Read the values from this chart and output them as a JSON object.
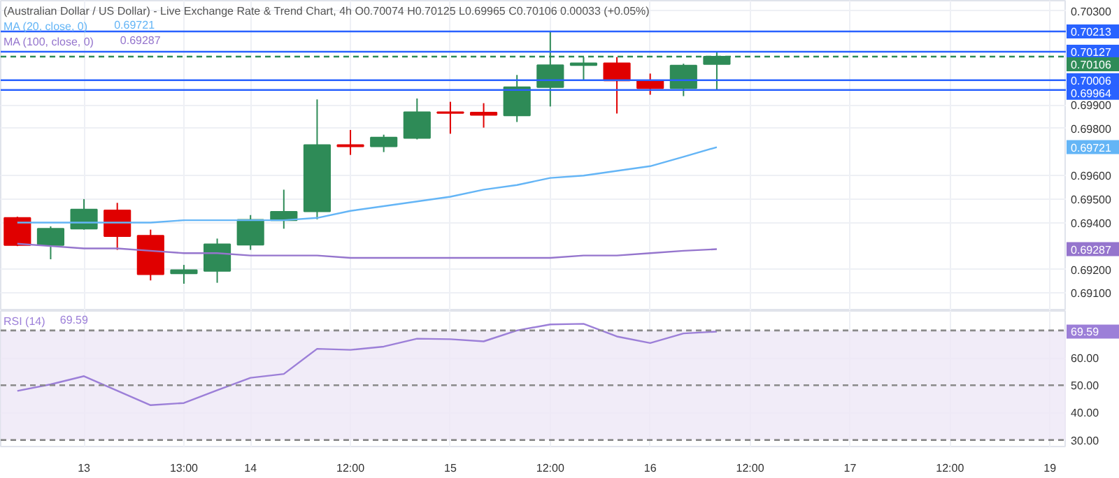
{
  "chart_data": [
    {
      "type": "candlestick",
      "title": "(Australian Dollar / US Dollar) - Live Exchange Rate & Trend Chart, 4h  O0.70074  H0.70125  L0.69965  C0.70106  0.00033 (+0.05%)",
      "categories": [
        null,
        null,
        null,
        null,
        null,
        null,
        null,
        null,
        null,
        null,
        null,
        null,
        null,
        null,
        null,
        null,
        null,
        null,
        null,
        null,
        null,
        null,
        null,
        null,
        null,
        null,
        null,
        null,
        null,
        null,
        null,
        null
      ],
      "ohlc": [
        [
          0.6942,
          0.69425,
          0.693,
          0.69304
        ],
        [
          0.69304,
          0.69384,
          0.69244,
          0.69374
        ],
        [
          0.69374,
          0.695,
          0.6937,
          0.69456
        ],
        [
          0.69452,
          0.69484,
          0.69284,
          0.69342
        ],
        [
          0.69344,
          0.6937,
          0.69154,
          0.6918
        ],
        [
          0.69184,
          0.6922,
          0.6914,
          0.69198
        ],
        [
          0.69194,
          0.69332,
          0.69144,
          0.69308
        ],
        [
          0.69306,
          0.69432,
          0.69284,
          0.69412
        ],
        [
          0.6941,
          0.6954,
          0.69374,
          0.69446
        ],
        [
          0.69448,
          0.69924,
          0.69414,
          0.6973
        ],
        [
          0.6973,
          0.69794,
          0.69688,
          0.69724
        ],
        [
          0.69724,
          0.69774,
          0.697,
          0.69762
        ],
        [
          0.6976,
          0.69928,
          0.69754,
          0.6987
        ],
        [
          0.6987,
          0.69914,
          0.69778,
          0.69866
        ],
        [
          0.69868,
          0.69908,
          0.69804,
          0.69858
        ],
        [
          0.69856,
          0.70028,
          0.69828,
          0.69976
        ],
        [
          0.69976,
          0.70213,
          0.69894,
          0.7007
        ],
        [
          0.7007,
          0.70104,
          0.70004,
          0.70078
        ],
        [
          0.70078,
          0.70104,
          0.69864,
          0.70004
        ],
        [
          0.70004,
          0.70034,
          0.69944,
          0.69972
        ],
        [
          0.69972,
          0.70076,
          0.69938,
          0.70068
        ],
        [
          0.70074,
          0.70125,
          0.69965,
          0.70106
        ],
        null,
        null,
        null,
        null,
        null,
        null,
        null,
        null,
        null,
        null
      ],
      "colors": [
        "#e00000",
        "#2e8b57",
        "#2e8b57",
        "#e00000",
        "#e00000",
        "#2e8b57",
        "#2e8b57",
        "#2e8b57",
        "#2e8b57",
        "#2e8b57",
        "#e00000",
        "#2e8b57",
        "#2e8b57",
        "#e00000",
        "#e00000",
        "#2e8b57",
        "#2e8b57",
        "#2e8b57",
        "#e00000",
        "#e00000",
        "#2e8b57",
        "#2e8b57",
        null,
        null,
        null,
        null,
        null,
        null,
        null,
        null,
        null,
        null
      ],
      "series": [
        {
          "name": "MA (20, close, 0)",
          "type": "line",
          "color": "#64b5f6",
          "values": [
            0.694,
            0.694,
            0.694,
            0.694,
            0.694,
            0.6941,
            0.6941,
            0.6941,
            0.6941,
            0.6942,
            0.6945,
            0.6947,
            0.6949,
            0.6951,
            0.6954,
            0.6956,
            0.6959,
            0.696,
            0.6962,
            0.6964,
            0.6968,
            0.69721,
            null,
            null,
            null,
            null,
            null,
            null,
            null,
            null,
            null,
            null
          ]
        },
        {
          "name": "MA (100, close, 0)",
          "type": "line",
          "color": "#9575cd",
          "values": [
            0.6931,
            0.693,
            0.6929,
            0.6929,
            0.6928,
            0.6927,
            0.6927,
            0.6926,
            0.6926,
            0.6926,
            0.6925,
            0.6925,
            0.6925,
            0.6925,
            0.6925,
            0.6925,
            0.6925,
            0.6926,
            0.6926,
            0.6927,
            0.6928,
            0.69287,
            null,
            null,
            null,
            null,
            null,
            null,
            null,
            null,
            null,
            null
          ]
        }
      ],
      "annotations": [
        "0.69721",
        "0.69287"
      ],
      "ref_lines": [
        {
          "axis": "y",
          "value": 0.70213,
          "label": "0.70213",
          "color": "#2962ff",
          "line_style": "solid"
        },
        {
          "axis": "y",
          "value": 0.70127,
          "label": "0.70127",
          "color": "#2962ff",
          "line_style": "solid"
        },
        {
          "axis": "y",
          "value": 0.70106,
          "label": "0.70106",
          "color": "#2e8b57",
          "line_style": "dashed"
        },
        {
          "axis": "y",
          "value": 0.70006,
          "label": "0.70006",
          "color": "#2962ff",
          "line_style": "solid"
        },
        {
          "axis": "y",
          "value": 0.69964,
          "label": "0.69964",
          "color": "#2962ff",
          "line_style": "solid"
        }
      ],
      "ylim": [
        0.69024,
        0.70344
      ],
      "yticks": [
        {
          "value": 0.691,
          "label": "0.69100"
        },
        {
          "value": 0.692,
          "label": "0.69200"
        },
        {
          "value": 0.694,
          "label": "0.69400"
        },
        {
          "value": 0.695,
          "label": "0.69500"
        },
        {
          "value": 0.696,
          "label": "0.69600"
        },
        {
          "value": 0.698,
          "label": "0.69800"
        },
        {
          "value": 0.699,
          "label": "0.69900"
        },
        {
          "value": 0.703,
          "label": "0.70300"
        }
      ],
      "tick_labels": "y",
      "grid": true,
      "legend": "top left"
    },
    {
      "type": "line",
      "categories": [
        null,
        null,
        "13",
        null,
        null,
        "13:00",
        null,
        "14",
        null,
        null,
        "12:00",
        null,
        null,
        "15",
        null,
        null,
        "12:00",
        null,
        null,
        "16",
        null,
        null,
        "12:00",
        null,
        null,
        "17",
        null,
        null,
        "12:00",
        null,
        null,
        "19"
      ],
      "series": [
        {
          "name": "RSI (14)",
          "color": "#9c7fd8",
          "values": [
            47.9,
            50.3,
            53.3,
            48,
            42.7,
            43.5,
            48.2,
            52.7,
            54.1,
            63.3,
            62.9,
            64.1,
            67.0,
            66.8,
            66.0,
            70.0,
            72.2,
            72.4,
            67.8,
            65.4,
            68.9,
            69.59,
            null,
            null,
            null,
            null,
            null,
            null,
            null,
            null,
            null,
            null
          ]
        }
      ],
      "annotations": [
        "69.59"
      ],
      "ref_lines": [
        {
          "axis": "y",
          "value": 70,
          "color": "#8a8a8a",
          "line_style": "dashed"
        },
        {
          "axis": "y",
          "value": 50,
          "color": "#8a8a8a",
          "line_style": "dashed"
        },
        {
          "axis": "y",
          "value": 30,
          "color": "#8a8a8a",
          "line_style": "dashed"
        }
      ],
      "bands": [
        {
          "axis": "y",
          "from": 30,
          "to": 70,
          "color": "#ede7f6"
        }
      ],
      "ylim": [
        27.6,
        77.1
      ],
      "yticks": [
        {
          "value": 30,
          "label": "30.00"
        },
        {
          "value": 40,
          "label": "40.00"
        },
        {
          "value": 50,
          "label": "50.00"
        },
        {
          "value": 60,
          "label": "60.00"
        }
      ],
      "grid": true,
      "legend": "top left"
    }
  ]
}
